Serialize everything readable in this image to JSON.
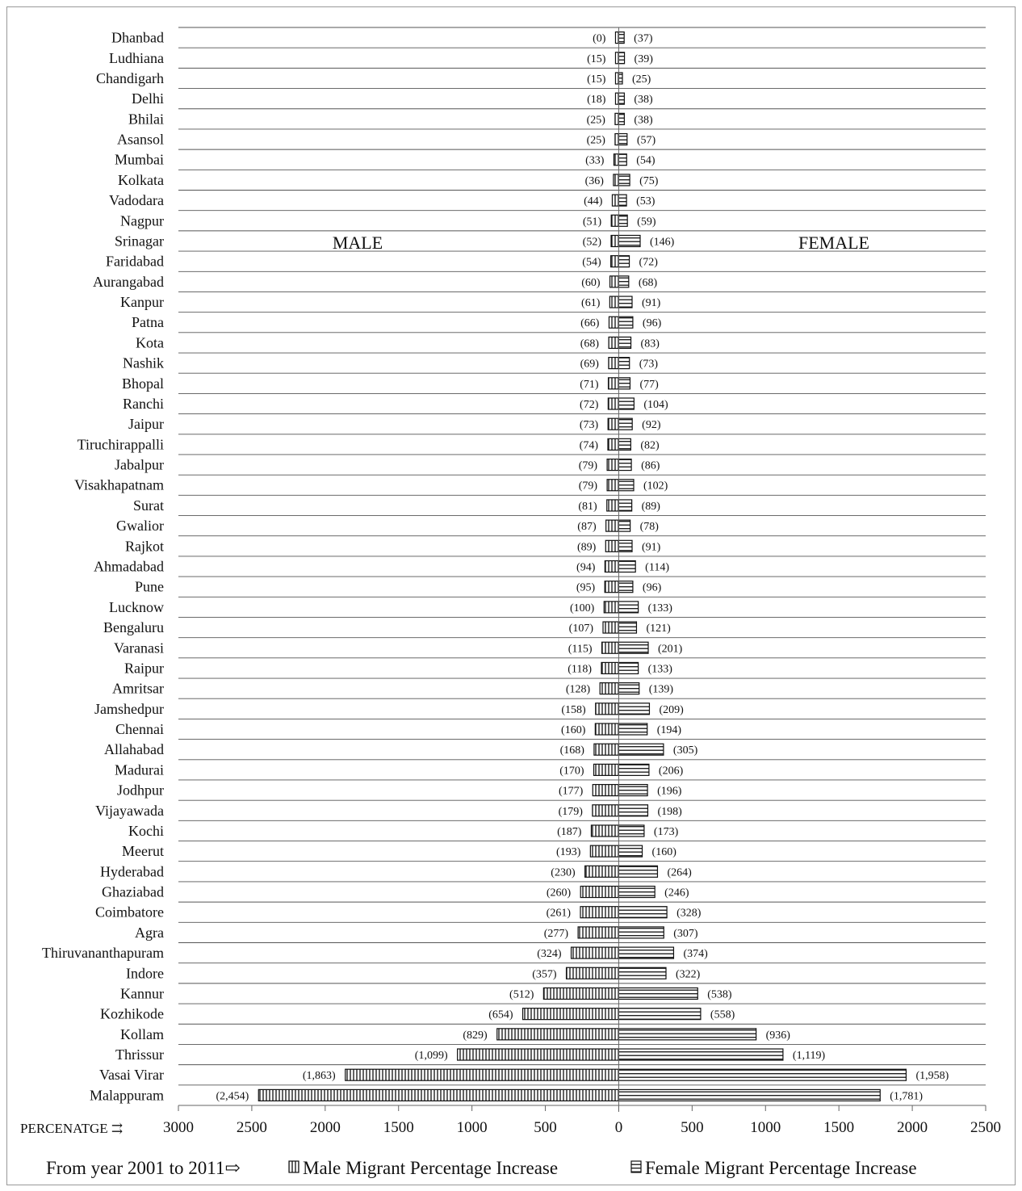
{
  "chart_data": {
    "type": "bar",
    "orientation": "horizontal-diverging",
    "categories": [
      "Dhanbad",
      "Ludhiana",
      "Chandigarh",
      "Delhi",
      "Bhilai",
      "Asansol",
      "Mumbai",
      "Kolkata",
      "Vadodara",
      "Nagpur",
      "Srinagar",
      "Faridabad",
      "Aurangabad",
      "Kanpur",
      "Patna",
      "Kota",
      "Nashik",
      "Bhopal",
      "Ranchi",
      "Jaipur",
      "Tiruchirappalli",
      "Jabalpur",
      "Visakhapatnam",
      "Surat",
      "Gwalior",
      "Rajkot",
      "Ahmadabad",
      "Pune",
      "Lucknow",
      "Bengaluru",
      "Varanasi",
      "Raipur",
      "Amritsar",
      "Jamshedpur",
      "Chennai",
      "Allahabad",
      "Madurai",
      "Jodhpur",
      "Vijayawada",
      "Kochi",
      "Meerut",
      "Hyderabad",
      "Ghaziabad",
      "Coimbatore",
      "Agra",
      "Thiruvananthapuram",
      "Indore",
      "Kannur",
      "Kozhikode",
      "Kollam",
      "Thrissur",
      "Vasai Virar",
      "Malappuram"
    ],
    "series": [
      {
        "name": "Male Migrant Percentage Increase",
        "values": [
          0,
          15,
          15,
          18,
          25,
          25,
          33,
          36,
          44,
          51,
          52,
          54,
          60,
          61,
          66,
          68,
          69,
          71,
          72,
          73,
          74,
          79,
          79,
          81,
          87,
          89,
          94,
          95,
          100,
          107,
          115,
          118,
          128,
          158,
          160,
          168,
          170,
          177,
          179,
          187,
          193,
          230,
          260,
          261,
          277,
          324,
          357,
          512,
          654,
          829,
          1099,
          1863,
          2454
        ],
        "labels": [
          "(0)",
          "(15)",
          "(15)",
          "(18)",
          "(25)",
          "(25)",
          "(33)",
          "(36)",
          "(44)",
          "(51)",
          "(52)",
          "(54)",
          "(60)",
          "(61)",
          "(66)",
          "(68)",
          "(69)",
          "(71)",
          "(72)",
          "(73)",
          "(74)",
          "(79)",
          "(79)",
          "(81)",
          "(87)",
          "(89)",
          "(94)",
          "(95)",
          "(100)",
          "(107)",
          "(115)",
          "(118)",
          "(128)",
          "(158)",
          "(160)",
          "(168)",
          "(170)",
          "(177)",
          "(179)",
          "(187)",
          "(193)",
          "(230)",
          "(260)",
          "(261)",
          "(277)",
          "(324)",
          "(357)",
          "(512)",
          "(654)",
          "(829)",
          "(1,099)",
          "(1,863)",
          "(2,454)"
        ]
      },
      {
        "name": "Female Migrant Percentage Increase",
        "values": [
          37,
          39,
          25,
          38,
          38,
          57,
          54,
          75,
          53,
          59,
          146,
          72,
          68,
          91,
          96,
          83,
          73,
          77,
          104,
          92,
          82,
          86,
          102,
          89,
          78,
          91,
          114,
          96,
          133,
          121,
          201,
          133,
          139,
          209,
          194,
          305,
          206,
          196,
          198,
          173,
          160,
          264,
          246,
          328,
          307,
          374,
          322,
          538,
          558,
          936,
          1119,
          1958,
          1781
        ],
        "labels": [
          "(37)",
          "(39)",
          "(25)",
          "(38)",
          "(38)",
          "(57)",
          "(54)",
          "(75)",
          "(53)",
          "(59)",
          "(146)",
          "(72)",
          "(68)",
          "(91)",
          "(96)",
          "(83)",
          "(73)",
          "(77)",
          "(104)",
          "(92)",
          "(82)",
          "(86)",
          "(102)",
          "(89)",
          "(78)",
          "(91)",
          "(114)",
          "(96)",
          "(133)",
          "(121)",
          "(201)",
          "(133)",
          "(139)",
          "(209)",
          "(194)",
          "(305)",
          "(206)",
          "(196)",
          "(198)",
          "(173)",
          "(160)",
          "(264)",
          "(246)",
          "(328)",
          "(307)",
          "(374)",
          "(322)",
          "(538)",
          "(558)",
          "(936)",
          "(1,119)",
          "(1,958)",
          "(1,781)"
        ]
      }
    ],
    "x_ticks": [
      "3000",
      "2500",
      "2000",
      "1500",
      "1000",
      "500",
      "0",
      "500",
      "1000",
      "1500",
      "2000",
      "2500"
    ],
    "xlim": [
      -3000,
      2500
    ],
    "xlabel": "PERCENATGE ⇉",
    "side_labels": {
      "left": "MALE",
      "right": "FEMALE"
    },
    "legend_prefix": "From year 2001 to 2011⇨",
    "legend_position": "bottom",
    "grid": "horizontal",
    "colors": {
      "bar_fill": "#ffffff",
      "bar_stroke": "#111111",
      "grid": "#555555"
    }
  }
}
